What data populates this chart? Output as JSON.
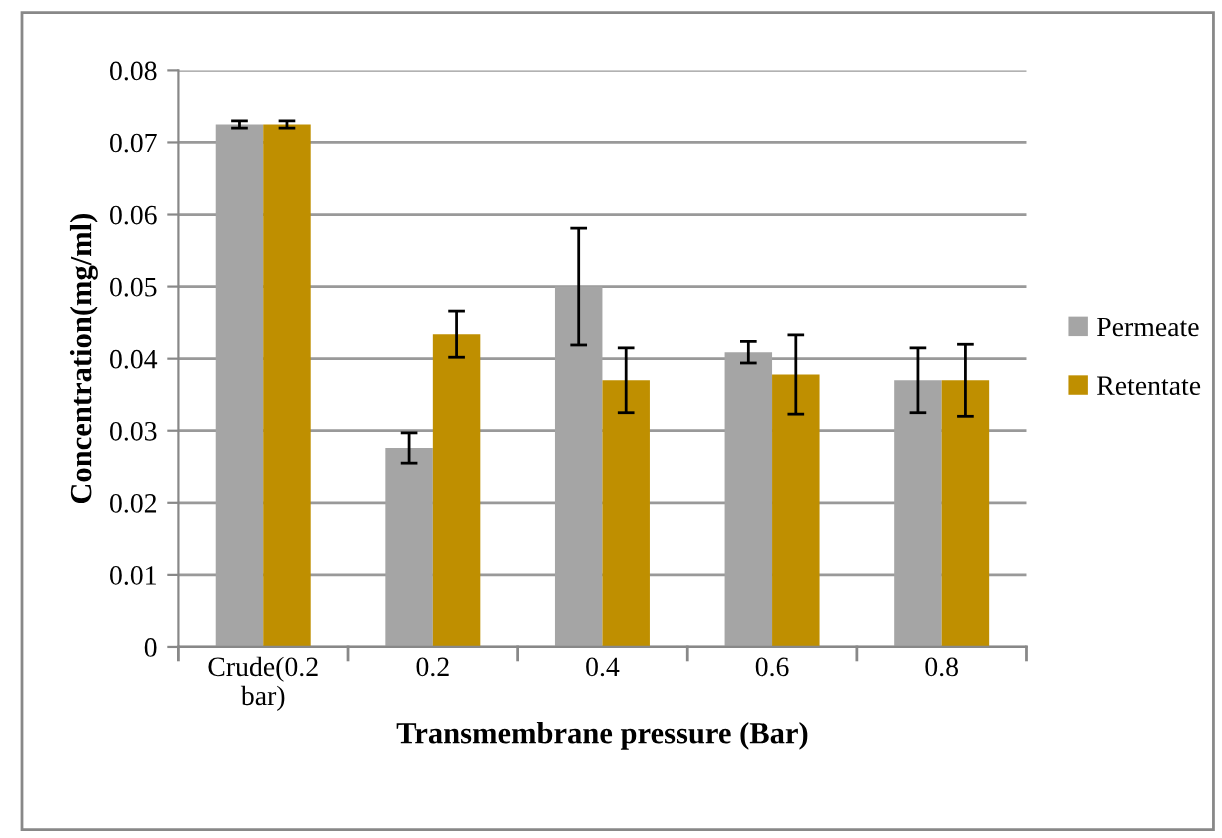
{
  "chart_data": {
    "type": "bar",
    "xlabel": "Transmembrane pressure (Bar)",
    "ylabel": "Concentration(mg/ml)",
    "categories": [
      "Crude(0.2\nbar)",
      "0.2",
      "0.4",
      "0.6",
      "0.8"
    ],
    "series": [
      {
        "name": "Permeate",
        "color": "#a5a5a5",
        "values": [
          0.0725,
          0.0276,
          0.05,
          0.0409,
          0.037
        ],
        "errors": [
          0.0005,
          0.0021,
          0.0081,
          0.0015,
          0.0045
        ]
      },
      {
        "name": "Retentate",
        "color": "#bf8f00",
        "values": [
          0.0725,
          0.0434,
          0.037,
          0.0378,
          0.037
        ],
        "errors": [
          0.0005,
          0.0032,
          0.0045,
          0.0055,
          0.005
        ]
      }
    ],
    "ylim": [
      0,
      0.08
    ],
    "yticks": [
      {
        "value": 0,
        "label": "0"
      },
      0.01,
      0.02,
      0.03,
      0.04,
      0.05,
      0.06,
      0.07,
      0.08
    ],
    "grid": "y",
    "legend": "right"
  }
}
